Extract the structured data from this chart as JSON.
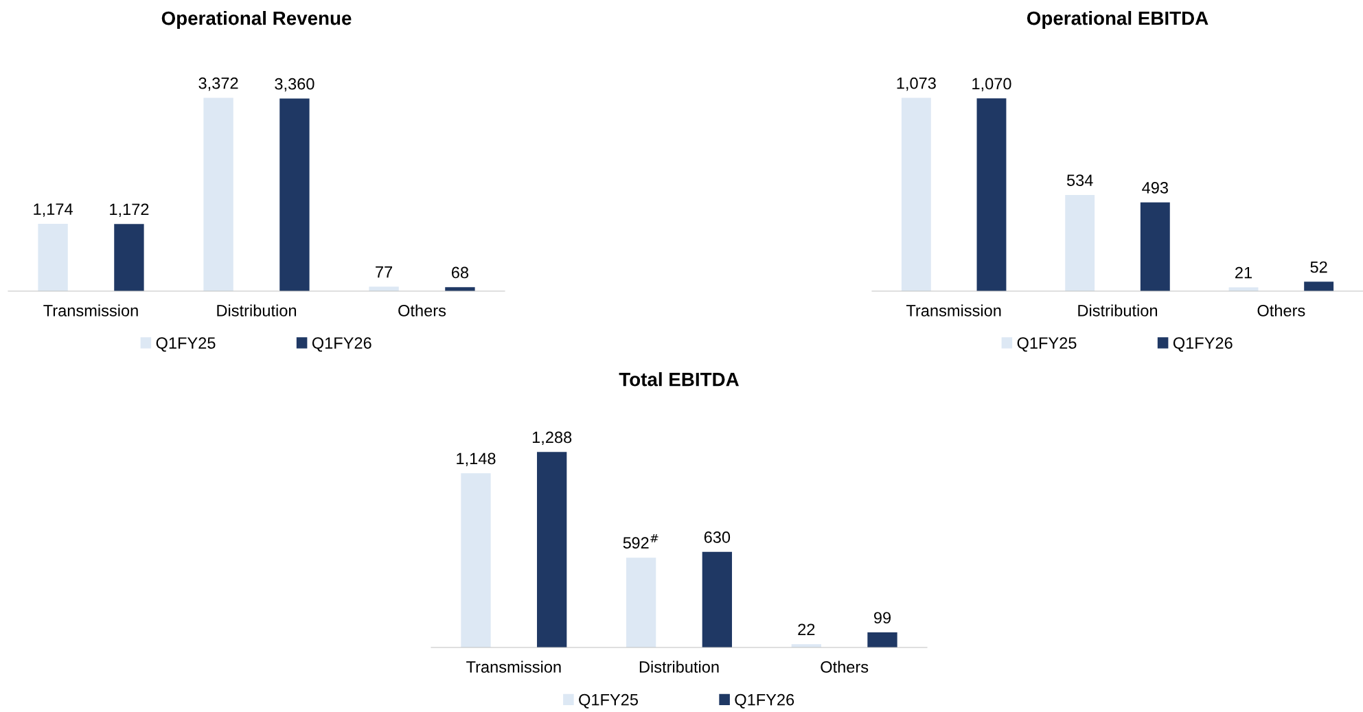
{
  "chart_data": [
    {
      "type": "bar",
      "title": "Operational Revenue",
      "categories": [
        "Transmission",
        "Distribution",
        "Others"
      ],
      "legend": "bottom",
      "grid": false,
      "series": [
        {
          "name": "Q1FY25",
          "color": "#dde8f4",
          "values": [
            1174,
            3372,
            77
          ],
          "value_labels": [
            "1,174",
            "3,372",
            "77"
          ]
        },
        {
          "name": "Q1FY26",
          "color": "#1f3864",
          "values": [
            1172,
            3360,
            68
          ],
          "value_labels": [
            "1,172",
            "3,360",
            "68"
          ]
        }
      ]
    },
    {
      "type": "bar",
      "title": "Operational EBITDA",
      "categories": [
        "Transmission",
        "Distribution",
        "Others"
      ],
      "legend": "bottom",
      "grid": false,
      "series": [
        {
          "name": "Q1FY25",
          "color": "#dde8f4",
          "values": [
            1073,
            534,
            21
          ],
          "value_labels": [
            "1,073",
            "534",
            "21"
          ]
        },
        {
          "name": "Q1FY26",
          "color": "#1f3864",
          "values": [
            1070,
            493,
            52
          ],
          "value_labels": [
            "1,070",
            "493",
            "52"
          ]
        }
      ]
    },
    {
      "type": "bar",
      "title": "Total EBITDA",
      "categories": [
        "Transmission",
        "Distribution",
        "Others"
      ],
      "legend": "bottom",
      "grid": false,
      "series": [
        {
          "name": "Q1FY25",
          "color": "#dde8f4",
          "values": [
            1148,
            592,
            22
          ],
          "value_labels": [
            "1,148",
            "592$^{#}$",
            "22"
          ]
        },
        {
          "name": "Q1FY26",
          "color": "#1f3864",
          "values": [
            1288,
            630,
            99
          ],
          "value_labels": [
            "1,288",
            "630",
            "99"
          ]
        }
      ]
    }
  ]
}
